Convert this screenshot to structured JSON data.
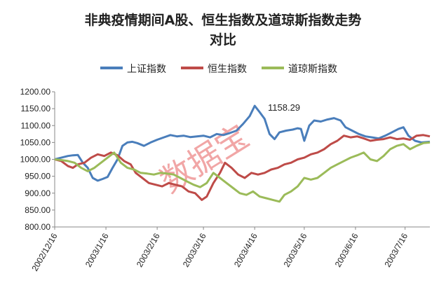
{
  "chart_data": {
    "type": "line",
    "title": "非典疫情期间A股、恒生指数及道琼斯指数走势",
    "title_line2": "对比",
    "xlabel": "",
    "ylabel": "",
    "ylim": [
      800,
      1200
    ],
    "yticks": [
      "800.00",
      "850.00",
      "900.00",
      "950.00",
      "1000.00",
      "1050.00",
      "1100.00",
      "1150.00",
      "1200.00"
    ],
    "xticks": [
      "2002/12/16",
      "2003/1/16",
      "2003/2/16",
      "2003/3/16",
      "2003/4/16",
      "2003/5/16",
      "2003/6/16",
      "2003/7/16"
    ],
    "x_range": [
      "2002-12-16",
      "2003-07-31"
    ],
    "grid": false,
    "legend_position": "top",
    "annotation": "1158.29",
    "watermark": "数据宝",
    "series": [
      {
        "name": "上证指数",
        "color": "#4a7ebb",
        "points": [
          [
            "2002-12-16",
            1000
          ],
          [
            "2002-12-20",
            1005
          ],
          [
            "2002-12-24",
            1010
          ],
          [
            "2002-12-27",
            1012
          ],
          [
            "2002-12-30",
            1013
          ],
          [
            "2003-01-02",
            990
          ],
          [
            "2003-01-05",
            975
          ],
          [
            "2003-01-08",
            945
          ],
          [
            "2003-01-11",
            937
          ],
          [
            "2003-01-14",
            942
          ],
          [
            "2003-01-17",
            948
          ],
          [
            "2003-01-20",
            975
          ],
          [
            "2003-01-23",
            1000
          ],
          [
            "2003-01-26",
            1040
          ],
          [
            "2003-01-29",
            1050
          ],
          [
            "2003-02-01",
            1052
          ],
          [
            "2003-02-04",
            1048
          ],
          [
            "2003-02-08",
            1040
          ],
          [
            "2003-02-12",
            1050
          ],
          [
            "2003-02-16",
            1058
          ],
          [
            "2003-02-20",
            1065
          ],
          [
            "2003-02-24",
            1072
          ],
          [
            "2003-02-28",
            1068
          ],
          [
            "2003-03-04",
            1070
          ],
          [
            "2003-03-08",
            1066
          ],
          [
            "2003-03-12",
            1068
          ],
          [
            "2003-03-16",
            1070
          ],
          [
            "2003-03-20",
            1065
          ],
          [
            "2003-03-24",
            1075
          ],
          [
            "2003-03-28",
            1072
          ],
          [
            "2003-04-01",
            1078
          ],
          [
            "2003-04-05",
            1085
          ],
          [
            "2003-04-09",
            1105
          ],
          [
            "2003-04-13",
            1128
          ],
          [
            "2003-04-16",
            1158.29
          ],
          [
            "2003-04-19",
            1140
          ],
          [
            "2003-04-22",
            1120
          ],
          [
            "2003-04-25",
            1075
          ],
          [
            "2003-04-28",
            1060
          ],
          [
            "2003-05-01",
            1080
          ],
          [
            "2003-05-05",
            1085
          ],
          [
            "2003-05-09",
            1088
          ],
          [
            "2003-05-12",
            1092
          ],
          [
            "2003-05-14",
            1090
          ],
          [
            "2003-05-16",
            1055
          ],
          [
            "2003-05-19",
            1100
          ],
          [
            "2003-05-22",
            1115
          ],
          [
            "2003-05-26",
            1112
          ],
          [
            "2003-05-30",
            1118
          ],
          [
            "2003-06-03",
            1122
          ],
          [
            "2003-06-07",
            1115
          ],
          [
            "2003-06-10",
            1095
          ],
          [
            "2003-06-14",
            1085
          ],
          [
            "2003-06-18",
            1075
          ],
          [
            "2003-06-22",
            1068
          ],
          [
            "2003-06-26",
            1065
          ],
          [
            "2003-06-30",
            1062
          ],
          [
            "2003-07-04",
            1070
          ],
          [
            "2003-07-08",
            1080
          ],
          [
            "2003-07-12",
            1090
          ],
          [
            "2003-07-15",
            1095
          ],
          [
            "2003-07-18",
            1070
          ],
          [
            "2003-07-22",
            1055
          ],
          [
            "2003-07-26",
            1050
          ],
          [
            "2003-07-31",
            1052
          ]
        ]
      },
      {
        "name": "恒生指数",
        "color": "#be4b48",
        "points": [
          [
            "2002-12-16",
            1000
          ],
          [
            "2002-12-20",
            995
          ],
          [
            "2002-12-24",
            980
          ],
          [
            "2002-12-27",
            975
          ],
          [
            "2002-12-30",
            985
          ],
          [
            "2003-01-03",
            990
          ],
          [
            "2003-01-07",
            1005
          ],
          [
            "2003-01-11",
            1015
          ],
          [
            "2003-01-15",
            1010
          ],
          [
            "2003-01-19",
            1020
          ],
          [
            "2003-01-23",
            1012
          ],
          [
            "2003-01-27",
            995
          ],
          [
            "2003-01-31",
            985
          ],
          [
            "2003-02-03",
            960
          ],
          [
            "2003-02-07",
            945
          ],
          [
            "2003-02-11",
            930
          ],
          [
            "2003-02-15",
            925
          ],
          [
            "2003-02-19",
            920
          ],
          [
            "2003-02-23",
            930
          ],
          [
            "2003-02-27",
            925
          ],
          [
            "2003-03-03",
            920
          ],
          [
            "2003-03-07",
            905
          ],
          [
            "2003-03-11",
            900
          ],
          [
            "2003-03-15",
            880
          ],
          [
            "2003-03-18",
            890
          ],
          [
            "2003-03-22",
            930
          ],
          [
            "2003-03-26",
            960
          ],
          [
            "2003-03-29",
            990
          ],
          [
            "2003-04-02",
            975
          ],
          [
            "2003-04-06",
            955
          ],
          [
            "2003-04-10",
            945
          ],
          [
            "2003-04-14",
            960
          ],
          [
            "2003-04-18",
            955
          ],
          [
            "2003-04-22",
            960
          ],
          [
            "2003-04-26",
            970
          ],
          [
            "2003-04-30",
            975
          ],
          [
            "2003-05-04",
            985
          ],
          [
            "2003-05-08",
            990
          ],
          [
            "2003-05-12",
            1000
          ],
          [
            "2003-05-16",
            1005
          ],
          [
            "2003-05-20",
            1015
          ],
          [
            "2003-05-24",
            1020
          ],
          [
            "2003-05-28",
            1030
          ],
          [
            "2003-06-01",
            1045
          ],
          [
            "2003-06-05",
            1055
          ],
          [
            "2003-06-09",
            1070
          ],
          [
            "2003-06-13",
            1065
          ],
          [
            "2003-06-17",
            1068
          ],
          [
            "2003-06-21",
            1062
          ],
          [
            "2003-06-25",
            1055
          ],
          [
            "2003-06-29",
            1058
          ],
          [
            "2003-07-03",
            1060
          ],
          [
            "2003-07-07",
            1065
          ],
          [
            "2003-07-11",
            1060
          ],
          [
            "2003-07-15",
            1062
          ],
          [
            "2003-07-19",
            1058
          ],
          [
            "2003-07-23",
            1070
          ],
          [
            "2003-07-27",
            1072
          ],
          [
            "2003-07-31",
            1068
          ]
        ]
      },
      {
        "name": "道琼斯指数",
        "color": "#9bbb59",
        "points": [
          [
            "2002-12-16",
            1000
          ],
          [
            "2002-12-20",
            998
          ],
          [
            "2002-12-24",
            995
          ],
          [
            "2002-12-28",
            990
          ],
          [
            "2003-01-01",
            975
          ],
          [
            "2003-01-05",
            965
          ],
          [
            "2003-01-09",
            975
          ],
          [
            "2003-01-13",
            990
          ],
          [
            "2003-01-17",
            1005
          ],
          [
            "2003-01-21",
            1020
          ],
          [
            "2003-01-25",
            990
          ],
          [
            "2003-01-29",
            975
          ],
          [
            "2003-02-02",
            970
          ],
          [
            "2003-02-06",
            960
          ],
          [
            "2003-02-10",
            958
          ],
          [
            "2003-02-14",
            955
          ],
          [
            "2003-02-18",
            960
          ],
          [
            "2003-02-22",
            958
          ],
          [
            "2003-02-26",
            955
          ],
          [
            "2003-03-02",
            945
          ],
          [
            "2003-03-06",
            935
          ],
          [
            "2003-03-10",
            925
          ],
          [
            "2003-03-14",
            918
          ],
          [
            "2003-03-18",
            930
          ],
          [
            "2003-03-22",
            960
          ],
          [
            "2003-03-26",
            945
          ],
          [
            "2003-03-30",
            930
          ],
          [
            "2003-04-03",
            915
          ],
          [
            "2003-04-07",
            900
          ],
          [
            "2003-04-11",
            895
          ],
          [
            "2003-04-15",
            905
          ],
          [
            "2003-04-19",
            890
          ],
          [
            "2003-04-23",
            885
          ],
          [
            "2003-04-27",
            880
          ],
          [
            "2003-05-01",
            875
          ],
          [
            "2003-05-04",
            895
          ],
          [
            "2003-05-08",
            905
          ],
          [
            "2003-05-12",
            920
          ],
          [
            "2003-05-16",
            945
          ],
          [
            "2003-05-20",
            940
          ],
          [
            "2003-05-24",
            945
          ],
          [
            "2003-05-28",
            960
          ],
          [
            "2003-06-01",
            975
          ],
          [
            "2003-06-05",
            985
          ],
          [
            "2003-06-09",
            995
          ],
          [
            "2003-06-13",
            1005
          ],
          [
            "2003-06-17",
            1012
          ],
          [
            "2003-06-21",
            1020
          ],
          [
            "2003-06-25",
            1000
          ],
          [
            "2003-06-29",
            995
          ],
          [
            "2003-07-03",
            1010
          ],
          [
            "2003-07-07",
            1030
          ],
          [
            "2003-07-11",
            1040
          ],
          [
            "2003-07-15",
            1045
          ],
          [
            "2003-07-19",
            1030
          ],
          [
            "2003-07-23",
            1040
          ],
          [
            "2003-07-27",
            1048
          ],
          [
            "2003-07-31",
            1050
          ]
        ]
      }
    ]
  }
}
